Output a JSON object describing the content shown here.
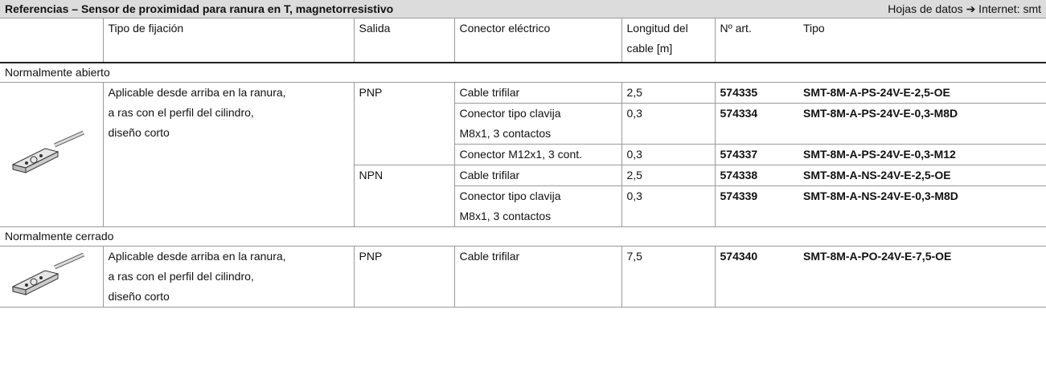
{
  "header": {
    "title": "Referencias – Sensor de proximidad para ranura en T, magnetorresistivo",
    "right": "Hojas de datos ➔ Internet: smt"
  },
  "table": {
    "columns": [
      "Tipo de fijación",
      "Salida",
      "Conector eléctrico",
      [
        "Longitud del",
        "cable [m]"
      ],
      "Nº art.",
      "Tipo"
    ],
    "sections": [
      {
        "label": "Normalmente abierto",
        "mounting": [
          "Aplicable desde arriba en la ranura,",
          "a ras con el perfil del cilindro,",
          "diseño corto"
        ],
        "groups": [
          {
            "output": "PNP",
            "rows": [
              [
                "Cable trifilar",
                "2,5",
                "574335",
                "SMT-8M-A-PS-24V-E-2,5-OE"
              ],
              [
                [
                  "Conector tipo clavija",
                  "M8x1, 3 contactos"
                ],
                "0,3",
                "574334",
                "SMT-8M-A-PS-24V-E-0,3-M8D"
              ],
              [
                "Conector M12x1, 3 cont.",
                "0,3",
                "574337",
                "SMT-8M-A-PS-24V-E-0,3-M12"
              ]
            ]
          },
          {
            "output": "NPN",
            "rows": [
              [
                "Cable trifilar",
                "2,5",
                "574338",
                "SMT-8M-A-NS-24V-E-2,5-OE"
              ],
              [
                [
                  "Conector tipo clavija",
                  "M8x1, 3 contactos"
                ],
                "0,3",
                "574339",
                "SMT-8M-A-NS-24V-E-0,3-M8D"
              ]
            ]
          }
        ]
      },
      {
        "label": "Normalmente cerrado",
        "mounting": [
          "Aplicable desde arriba en la ranura,",
          "a ras con el perfil del cilindro,",
          "diseño corto"
        ],
        "groups": [
          {
            "output": "PNP",
            "rows": [
              [
                "Cable trifilar",
                "7,5",
                "574340",
                "SMT-8M-A-PO-24V-E-7,5-OE"
              ]
            ]
          }
        ]
      }
    ]
  }
}
